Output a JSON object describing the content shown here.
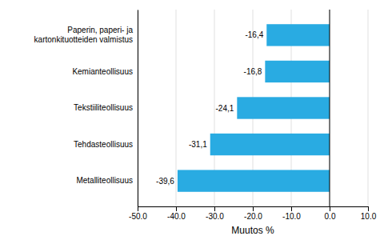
{
  "chart_data": {
    "type": "bar",
    "orientation": "horizontal",
    "categories": [
      "Metalliteollisuus",
      "Tehdasteollisuus",
      "Tekstiiliteollisuus",
      "Kemianteollisuus",
      "Paperin, paperi- ja kartonkituotteiden valmistus"
    ],
    "values": [
      -39.6,
      -31.1,
      -24.1,
      -16.8,
      -16.4
    ],
    "value_labels": [
      "-39,6",
      "-31,1",
      "-24,1",
      "-16,8",
      "-16,4"
    ],
    "data_labels": true,
    "color": "#29abe2",
    "xlabel": "Muutos %",
    "xlim": [
      -50,
      10
    ],
    "xticks": [
      {
        "value": -50,
        "label": "-50.0"
      },
      {
        "value": -40,
        "label": "-40.0"
      },
      {
        "value": -30,
        "label": "-30.0"
      },
      {
        "value": -20,
        "label": "-20.0"
      },
      {
        "value": -10,
        "label": "-10.0"
      },
      {
        "value": 0,
        "label": "0.0"
      },
      {
        "value": 10,
        "label": "10.0"
      }
    ],
    "grid": true
  }
}
